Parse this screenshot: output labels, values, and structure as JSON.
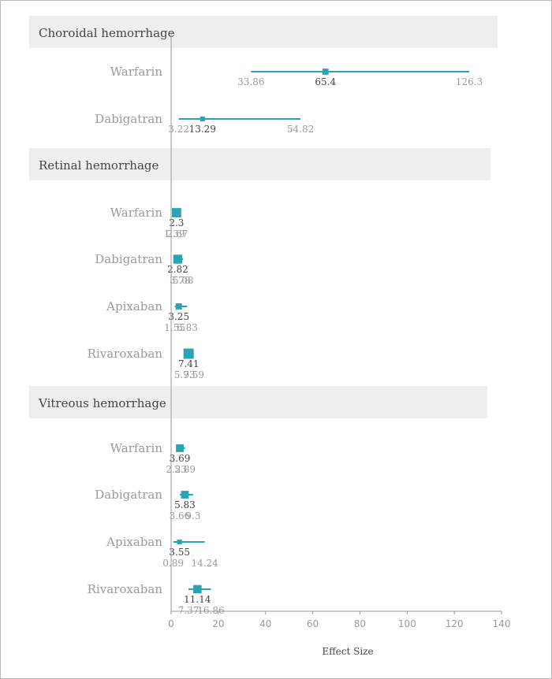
{
  "chart_data": {
    "type": "forest",
    "xlabel": "Effect Size",
    "xlim": [
      0,
      140
    ],
    "xticks": [
      0,
      20,
      40,
      60,
      80,
      100,
      120,
      140
    ],
    "x_tick_labels": [
      "0",
      "20",
      "40",
      "60",
      "80",
      "100",
      "120",
      "140"
    ],
    "grid": false,
    "colors": {
      "marker": "#2aa3b4",
      "band": "#eeeeee"
    },
    "groups": [
      {
        "name": "Choroidal hemorrhage",
        "rows": [
          {
            "label": "Warfarin",
            "estimate": 65.4,
            "lower": 33.86,
            "upper": 126.3,
            "estimate_text": "65.4",
            "lower_text": "33.86",
            "upper_text": "126.3",
            "weight": 0.35
          },
          {
            "label": "Dabigatran",
            "estimate": 13.29,
            "lower": 3.22,
            "upper": 54.82,
            "estimate_text": "13.29",
            "lower_text": "3.22",
            "upper_text": "54.82",
            "weight": 0.15
          }
        ]
      },
      {
        "name": "Retinal hemorrhage",
        "rows": [
          {
            "label": "Warfarin",
            "estimate": 2.3,
            "lower": 1.39,
            "upper": 2.67,
            "estimate_text": "2.3",
            "lower_text": "1.39",
            "upper_text": "2.67",
            "weight": 0.85
          },
          {
            "label": "Dabigatran",
            "estimate": 2.82,
            "lower": 3.78,
            "upper": 5.08,
            "estimate_text": "2.82",
            "lower_text": "3.78",
            "upper_text": "5.08",
            "weight": 0.8
          },
          {
            "label": "Apixaban",
            "estimate": 3.25,
            "lower": 1.55,
            "upper": 6.83,
            "estimate_text": "3.25",
            "lower_text": "1.55",
            "upper_text": "6.83",
            "weight": 0.35
          },
          {
            "label": "Rivaroxaban",
            "estimate": 7.41,
            "lower": 5.73,
            "upper": 9.59,
            "estimate_text": "7.41",
            "lower_text": "5.73",
            "upper_text": "9.59",
            "weight": 1.0
          }
        ]
      },
      {
        "name": "Vitreous hemorrhage",
        "rows": [
          {
            "label": "Warfarin",
            "estimate": 3.69,
            "lower": 2.23,
            "upper": 5.89,
            "estimate_text": "3.69",
            "lower_text": "2.23",
            "upper_text": "5.89",
            "weight": 0.6
          },
          {
            "label": "Dabigatran",
            "estimate": 5.83,
            "lower": 3.66,
            "upper": 9.3,
            "estimate_text": "5.83",
            "lower_text": "3.66",
            "upper_text": "9.3",
            "weight": 0.6
          },
          {
            "label": "Apixaban",
            "estimate": 3.55,
            "lower": 0.89,
            "upper": 14.24,
            "estimate_text": "3.55",
            "lower_text": "0.89",
            "upper_text": "14.24",
            "weight": 0.15
          },
          {
            "label": "Rivaroxaban",
            "estimate": 11.14,
            "lower": 7.37,
            "upper": 16.86,
            "estimate_text": "11.14",
            "lower_text": "7.37",
            "upper_text": "16.86",
            "weight": 0.7
          }
        ]
      }
    ]
  }
}
